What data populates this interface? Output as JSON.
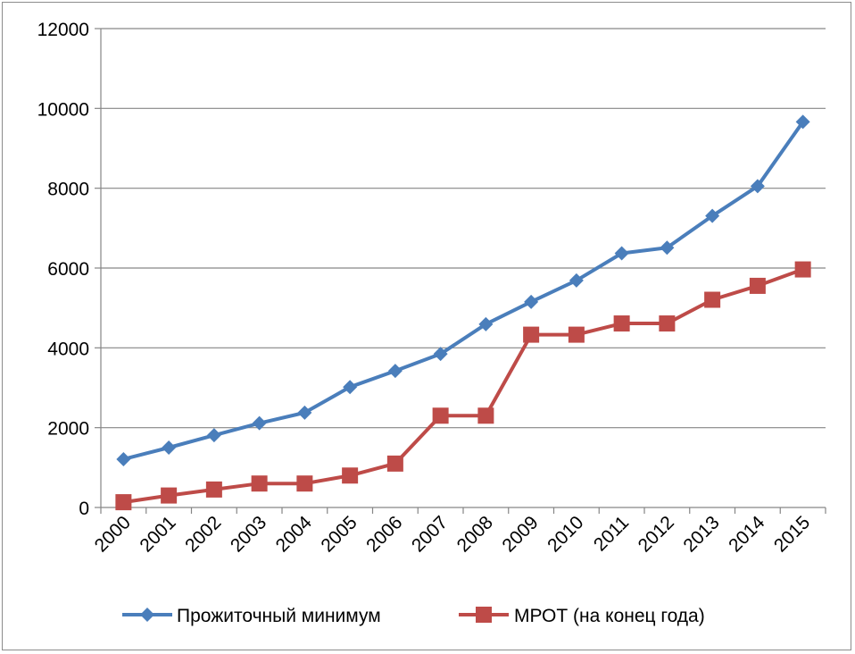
{
  "chart_data": {
    "type": "line",
    "categories": [
      "2000",
      "2001",
      "2002",
      "2003",
      "2004",
      "2005",
      "2006",
      "2007",
      "2008",
      "2009",
      "2010",
      "2011",
      "2012",
      "2013",
      "2014",
      "2015"
    ],
    "ylim": [
      0,
      12000
    ],
    "yticks": [
      0,
      2000,
      4000,
      6000,
      8000,
      10000,
      12000
    ],
    "grid": true,
    "legend_position": "bottom",
    "series": [
      {
        "name": "Прожиточный минимум",
        "color": "#4a7ebb",
        "marker": "diamond",
        "values": [
          1210,
          1500,
          1810,
          2112,
          2376,
          3018,
          3422,
          3847,
          4593,
          5153,
          5688,
          6369,
          6510,
          7306,
          8050,
          9662
        ]
      },
      {
        "name": "МРОТ (на конец года)",
        "color": "#be4b48",
        "marker": "square",
        "values": [
          132,
          300,
          450,
          600,
          600,
          800,
          1100,
          2300,
          2300,
          4330,
          4330,
          4611,
          4611,
          5205,
          5554,
          5965
        ]
      }
    ]
  }
}
